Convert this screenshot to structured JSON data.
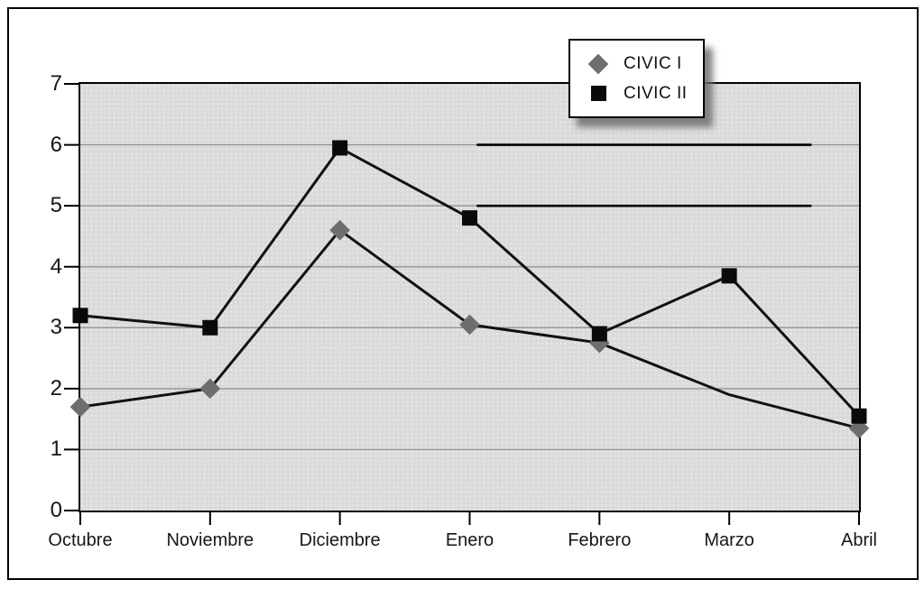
{
  "figure": {
    "background": "#ffffff",
    "outer_border_color": "#000000",
    "plot_background": "#dadada"
  },
  "chart_data": {
    "type": "line",
    "title": "",
    "xlabel": "",
    "ylabel": "",
    "categories": [
      "Octubre",
      "Noviembre",
      "Diciembre",
      "Enero",
      "Febrero",
      "Marzo",
      "Abril"
    ],
    "series": [
      {
        "name": "CIVIC I",
        "marker": "diamond",
        "marker_color": "#6e6e6e",
        "line_color": "#111111",
        "values": [
          1.7,
          2.0,
          4.6,
          3.05,
          2.75,
          1.9,
          1.35
        ],
        "marker_hidden_at_indices": [
          5
        ]
      },
      {
        "name": "CIVIC II",
        "marker": "square",
        "marker_color": "#0a0a0a",
        "line_color": "#111111",
        "values": [
          3.2,
          3.0,
          5.95,
          4.8,
          2.9,
          3.85,
          1.55
        ],
        "marker_hidden_at_indices": []
      }
    ],
    "ylim": [
      0,
      7
    ],
    "yticks": [
      0,
      1,
      2,
      3,
      4,
      5,
      6,
      7
    ],
    "grid": true,
    "gridline_color": "#8c8c8c",
    "axis_color": "#000000",
    "legend_position": "top-center-right",
    "emphasis_segments": [
      {
        "y": 6,
        "x_from_frac": 0.509,
        "x_to_frac": 0.939
      },
      {
        "y": 5,
        "x_from_frac": 0.509,
        "x_to_frac": 0.939
      }
    ]
  },
  "legend": {
    "entries": [
      {
        "label": "CIVIC I",
        "marker": "diamond",
        "color": "#6e6e6e"
      },
      {
        "label": "CIVIC II",
        "marker": "square",
        "color": "#0a0a0a"
      }
    ]
  }
}
